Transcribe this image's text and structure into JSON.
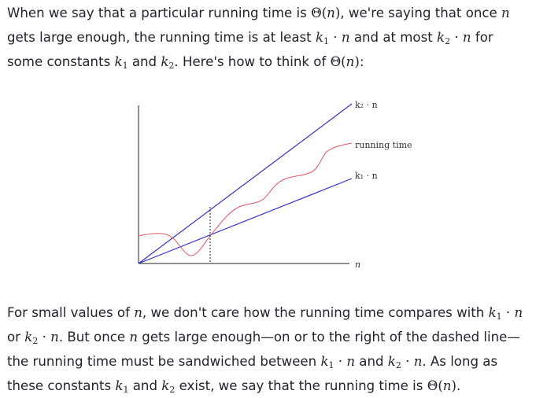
{
  "p1": {
    "s1": "When we say that a particular running time is ",
    "theta": "Θ",
    "lp": "(",
    "n": "n",
    "rp": ")",
    "s2": ", we're saying that once ",
    "s3": "gets large enough, the running time is at least ",
    "k": "k",
    "sub1": "1",
    "sub2": "2",
    "dot": " · ",
    "s4": " and at most ",
    "s5": " for",
    "s6": "some constants ",
    "s7": " and ",
    "s8": ". Here's how to think of ",
    "s9": ":"
  },
  "figure": {
    "label_k2n": "k₂ · n",
    "label_running_time": "running time",
    "label_k1n": "k₁ · n",
    "label_n": "n",
    "colors": {
      "blue": "#3333cc",
      "red": "#e05566",
      "axis": "#222222"
    }
  },
  "p2": {
    "s1": "For small values of ",
    "s2": ", we don't care how the running time compares with ",
    "s3": "or ",
    "s4": ". But once ",
    "s5": " gets large enough—on or to the right of the dashed line—",
    "s6": "the running time must be sandwiched between ",
    "s7": " and ",
    "s8": ". As long as",
    "s9": "these constants ",
    "s10": " exist, we say that the running time is ",
    "s11": "."
  }
}
